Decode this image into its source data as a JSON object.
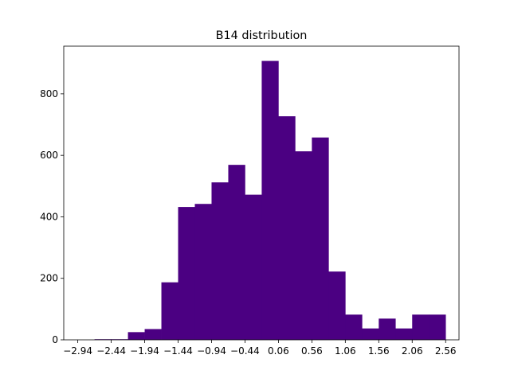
{
  "chart_data": {
    "type": "bar",
    "title": "B14 distribution",
    "xlabel": "",
    "ylabel": "",
    "bar_color": "#4b0082",
    "grid": false,
    "legend": "none",
    "xlim": [
      -3.15,
      2.76
    ],
    "ylim": [
      0,
      955
    ],
    "x_ticks": [
      -2.94,
      -2.44,
      -1.94,
      -1.44,
      -0.94,
      -0.44,
      0.06,
      0.56,
      1.06,
      1.56,
      2.06,
      2.56
    ],
    "x_tick_labels": [
      "−2.94",
      "−2.44",
      "−1.94",
      "−1.44",
      "−0.94",
      "−0.44",
      "0.06",
      "0.56",
      "1.06",
      "1.56",
      "2.06",
      "2.56"
    ],
    "y_ticks": [
      0,
      200,
      400,
      600,
      800
    ],
    "y_tick_labels": [
      "0",
      "200",
      "400",
      "600",
      "800"
    ],
    "bin_width": 0.25,
    "bin_edges": [
      -2.94,
      -2.69,
      -2.44,
      -2.19,
      -1.94,
      -1.69,
      -1.44,
      -1.19,
      -0.94,
      -0.69,
      -0.44,
      -0.19,
      0.06,
      0.31,
      0.56,
      0.81,
      1.06,
      1.31,
      1.56,
      1.81,
      2.06,
      2.31,
      2.56
    ],
    "values": [
      0,
      2,
      2,
      25,
      35,
      187,
      432,
      442,
      512,
      569,
      472,
      907,
      727,
      613,
      658,
      222,
      82,
      37,
      69,
      37,
      82,
      82
    ]
  }
}
